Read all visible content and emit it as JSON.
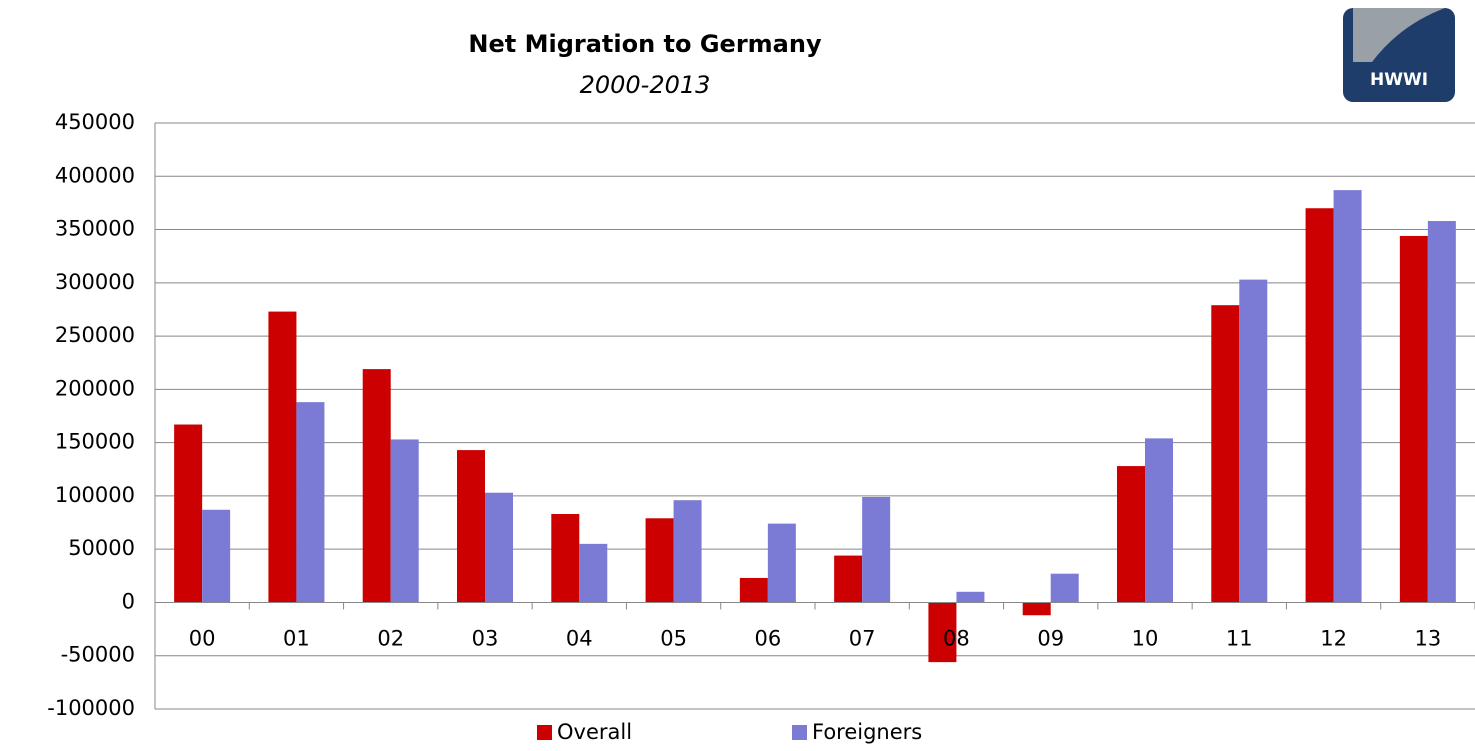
{
  "chart_data": {
    "type": "bar",
    "title": "Net Migration to Germany",
    "subtitle": "2000-2013",
    "logo": "HWWI",
    "categories": [
      "00",
      "01",
      "02",
      "03",
      "04",
      "05",
      "06",
      "07",
      "08",
      "09",
      "10",
      "11",
      "12",
      "13"
    ],
    "series": [
      {
        "name": "Overall",
        "color": "#cc0000",
        "values": [
          167000,
          273000,
          219000,
          143000,
          83000,
          79000,
          23000,
          44000,
          -56000,
          -12000,
          128000,
          279000,
          370000,
          344000
        ]
      },
      {
        "name": "Foreigners",
        "color": "#7b7bd6",
        "values": [
          87000,
          188000,
          153000,
          103000,
          55000,
          96000,
          74000,
          99000,
          10000,
          27000,
          154000,
          303000,
          387000,
          358000
        ]
      }
    ],
    "ylim": [
      -100000,
      450000
    ],
    "yticks": [
      -100000,
      -50000,
      0,
      50000,
      100000,
      150000,
      200000,
      250000,
      300000,
      350000,
      400000,
      450000
    ],
    "grid": true
  }
}
